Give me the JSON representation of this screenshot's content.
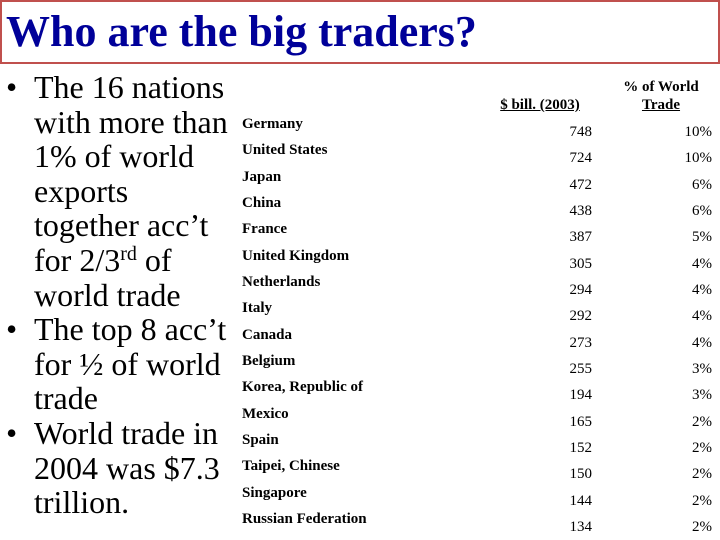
{
  "slide": {
    "title": "Who are the big traders?",
    "bullets": [
      {
        "lines": [
          "The 16 nations",
          "with more than",
          "1% of world",
          "exports",
          "together acc’t"
        ],
        "line6_pre": "for 2/3",
        "line6_sup": "rd",
        "line6_post": " of",
        "line7": "world trade"
      },
      {
        "lines": [
          "The top 8 acc’t",
          "for ½ of world",
          "trade"
        ]
      },
      {
        "lines": [
          "World trade in",
          "2004 was $7.3",
          "trillion."
        ]
      }
    ],
    "bullet_symbol": "•"
  },
  "table": {
    "col_value_header": "$ bill. (2003)",
    "col_pct_header_line1": "% of World",
    "col_pct_header_line2": "Trade",
    "rows": [
      {
        "country": "Germany",
        "value": "748",
        "pct": "10%"
      },
      {
        "country": "United States",
        "value": "724",
        "pct": "10%"
      },
      {
        "country": "Japan",
        "value": "472",
        "pct": "6%"
      },
      {
        "country": "China",
        "value": "438",
        "pct": "6%"
      },
      {
        "country": "France",
        "value": "387",
        "pct": "5%"
      },
      {
        "country": "United Kingdom",
        "value": "305",
        "pct": "4%"
      },
      {
        "country": "Netherlands",
        "value": "294",
        "pct": "4%"
      },
      {
        "country": "Italy",
        "value": "292",
        "pct": "4%"
      },
      {
        "country": "Canada",
        "value": "273",
        "pct": "4%"
      },
      {
        "country": "Belgium",
        "value": "255",
        "pct": "3%"
      },
      {
        "country": "Korea, Republic of",
        "value": "194",
        "pct": "3%"
      },
      {
        "country": "Mexico",
        "value": "165",
        "pct": "2%"
      },
      {
        "country": "Spain",
        "value": "152",
        "pct": "2%"
      },
      {
        "country": "Taipei, Chinese",
        "value": "150",
        "pct": "2%"
      },
      {
        "country": "Singapore",
        "value": "144",
        "pct": "2%"
      },
      {
        "country": "Russian Federation",
        "value": "134",
        "pct": "2%"
      }
    ]
  },
  "colors": {
    "title": "#000099",
    "title_border": "#c0504d"
  }
}
